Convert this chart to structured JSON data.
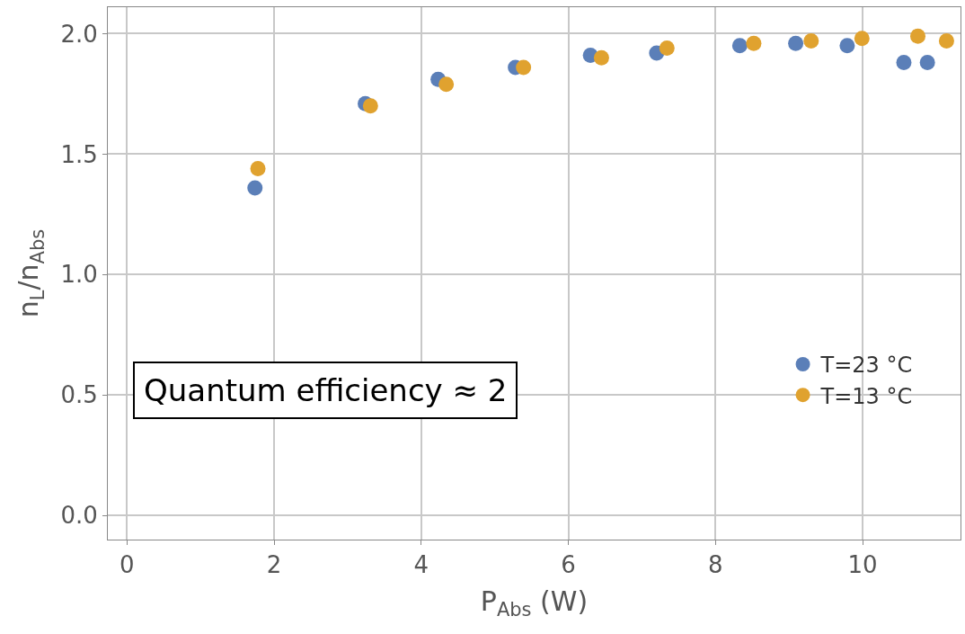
{
  "chart_data": {
    "type": "scatter",
    "xlabel": "P$_{Abs}$ (W)",
    "ylabel": "n$_{L}$/n$_{Abs}$",
    "series": [
      {
        "name": "T=23 °C",
        "color": "#5b7fb8",
        "x": [
          1.74,
          3.24,
          4.23,
          5.28,
          6.3,
          7.2,
          8.33,
          9.09,
          9.79,
          10.56,
          10.88
        ],
        "values": [
          1.36,
          1.71,
          1.81,
          1.86,
          1.91,
          1.92,
          1.95,
          1.96,
          1.95,
          1.88,
          1.88
        ]
      },
      {
        "name": "T=13 °C",
        "color": "#e0a22f",
        "x": [
          1.78,
          3.31,
          4.34,
          5.39,
          6.45,
          7.34,
          8.52,
          9.3,
          9.99,
          10.75,
          11.14
        ],
        "values": [
          1.44,
          1.7,
          1.79,
          1.86,
          1.9,
          1.94,
          1.96,
          1.97,
          1.98,
          1.99,
          1.97
        ]
      }
    ],
    "xlim": [
      -0.26,
      11.33
    ],
    "ylim": [
      -0.1,
      2.11
    ],
    "xticks": [
      0,
      2,
      4,
      6,
      8,
      10
    ],
    "yticks": [
      {
        "value": 0,
        "label": "0.0"
      },
      {
        "value": 0.5,
        "label": "0.5"
      },
      {
        "value": 1,
        "label": "1.0"
      },
      {
        "value": 1.5,
        "label": "1.5"
      },
      {
        "value": 2,
        "label": "2.0"
      }
    ],
    "grid": true,
    "legend": "right",
    "marker": "circle",
    "annotations": [
      "Quantum efficiency ≈ 2"
    ]
  }
}
